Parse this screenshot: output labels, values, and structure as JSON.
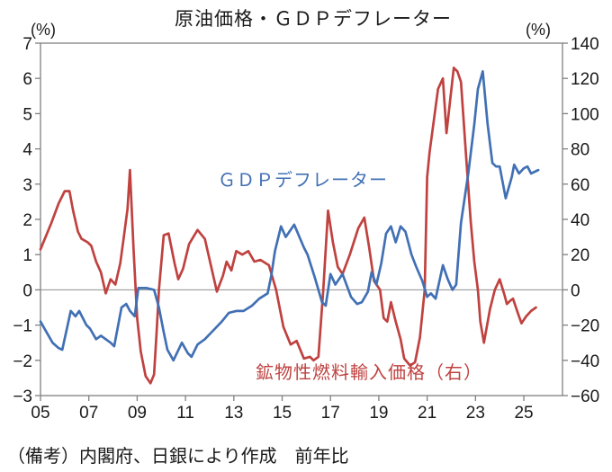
{
  "colors": {
    "axis": "#808080",
    "zero_line": "#8f8f8f",
    "text": "#1a1a1a"
  },
  "chart_data": {
    "type": "line",
    "title": "原油価格・ＧＤＰデフレーター",
    "note": "（備考）内閣府、日銀により作成　前年比",
    "grid": "zero-baseline-only",
    "legend": "inline-text-labels",
    "left_axis": {
      "unit": "(%)",
      "min": -3,
      "max": 7,
      "ticks": [
        7,
        6,
        5,
        4,
        3,
        2,
        1,
        0,
        -1,
        -2,
        -3
      ]
    },
    "right_axis": {
      "unit": "(%)",
      "min": -60,
      "max": 140,
      "ticks": [
        140,
        120,
        100,
        80,
        60,
        40,
        20,
        0,
        -20,
        -40,
        -60
      ]
    },
    "x_axis": {
      "min": 2005,
      "max": 2026.6,
      "tick_years": [
        2005,
        2007,
        2009,
        2011,
        2013,
        2015,
        2017,
        2019,
        2021,
        2023,
        2025
      ],
      "tick_labels": [
        "05",
        "07",
        "09",
        "11",
        "13",
        "15",
        "17",
        "19",
        "21",
        "23",
        "25"
      ]
    },
    "series": [
      {
        "name": "ＧＤＰデフレーター",
        "axis": "left",
        "color": "#4170b4",
        "points": [
          [
            2005.0,
            -0.9
          ],
          [
            2005.5,
            -1.5
          ],
          [
            2005.75,
            -1.65
          ],
          [
            2005.9,
            -1.7
          ],
          [
            2006.25,
            -0.6
          ],
          [
            2006.45,
            -0.75
          ],
          [
            2006.6,
            -0.6
          ],
          [
            2006.9,
            -1.0
          ],
          [
            2007.05,
            -1.1
          ],
          [
            2007.3,
            -1.4
          ],
          [
            2007.5,
            -1.3
          ],
          [
            2007.9,
            -1.5
          ],
          [
            2008.05,
            -1.6
          ],
          [
            2008.35,
            -0.5
          ],
          [
            2008.55,
            -0.4
          ],
          [
            2008.7,
            -0.6
          ],
          [
            2008.9,
            -0.75
          ],
          [
            2009.05,
            0.05
          ],
          [
            2009.4,
            0.05
          ],
          [
            2009.7,
            0.0
          ],
          [
            2009.9,
            -0.5
          ],
          [
            2010.1,
            -1.2
          ],
          [
            2010.25,
            -1.7
          ],
          [
            2010.5,
            -2.0
          ],
          [
            2010.85,
            -1.5
          ],
          [
            2011.1,
            -1.8
          ],
          [
            2011.25,
            -1.9
          ],
          [
            2011.5,
            -1.55
          ],
          [
            2011.8,
            -1.4
          ],
          [
            2012.15,
            -1.15
          ],
          [
            2012.5,
            -0.9
          ],
          [
            2012.8,
            -0.65
          ],
          [
            2013.1,
            -0.6
          ],
          [
            2013.4,
            -0.6
          ],
          [
            2013.75,
            -0.45
          ],
          [
            2014.05,
            -0.25
          ],
          [
            2014.4,
            -0.1
          ],
          [
            2014.55,
            0.4
          ],
          [
            2014.7,
            1.1
          ],
          [
            2014.95,
            1.8
          ],
          [
            2015.15,
            1.5
          ],
          [
            2015.5,
            1.85
          ],
          [
            2015.9,
            1.2
          ],
          [
            2016.05,
            1.0
          ],
          [
            2016.35,
            0.35
          ],
          [
            2016.65,
            -0.35
          ],
          [
            2016.8,
            -0.45
          ],
          [
            2017.0,
            0.45
          ],
          [
            2017.2,
            0.15
          ],
          [
            2017.5,
            0.45
          ],
          [
            2017.85,
            -0.2
          ],
          [
            2018.1,
            -0.4
          ],
          [
            2018.3,
            -0.35
          ],
          [
            2018.55,
            -0.05
          ],
          [
            2018.7,
            0.5
          ],
          [
            2018.9,
            0.15
          ],
          [
            2019.1,
            0.75
          ],
          [
            2019.3,
            1.6
          ],
          [
            2019.5,
            1.8
          ],
          [
            2019.7,
            1.35
          ],
          [
            2019.9,
            1.8
          ],
          [
            2020.1,
            1.65
          ],
          [
            2020.35,
            1.0
          ],
          [
            2020.55,
            0.65
          ],
          [
            2020.8,
            0.25
          ],
          [
            2021.0,
            -0.2
          ],
          [
            2021.15,
            -0.1
          ],
          [
            2021.35,
            -0.25
          ],
          [
            2021.65,
            0.7
          ],
          [
            2021.85,
            0.3
          ],
          [
            2022.05,
            0.0
          ],
          [
            2022.2,
            0.15
          ],
          [
            2022.4,
            1.9
          ],
          [
            2022.7,
            3.3
          ],
          [
            2022.95,
            4.7
          ],
          [
            2023.1,
            5.7
          ],
          [
            2023.3,
            6.2
          ],
          [
            2023.5,
            4.7
          ],
          [
            2023.7,
            3.6
          ],
          [
            2023.85,
            3.5
          ],
          [
            2024.0,
            3.5
          ],
          [
            2024.25,
            2.6
          ],
          [
            2024.5,
            3.2
          ],
          [
            2024.6,
            3.55
          ],
          [
            2024.8,
            3.3
          ],
          [
            2025.0,
            3.45
          ],
          [
            2025.15,
            3.5
          ],
          [
            2025.3,
            3.3
          ],
          [
            2025.6,
            3.4
          ]
        ]
      },
      {
        "name": "鉱物性燃料輸入価格（右）",
        "axis": "right",
        "color": "#bf4240",
        "points": [
          [
            2005.0,
            23
          ],
          [
            2005.45,
            38
          ],
          [
            2005.75,
            49
          ],
          [
            2006.0,
            56
          ],
          [
            2006.2,
            56
          ],
          [
            2006.35,
            45
          ],
          [
            2006.55,
            33
          ],
          [
            2006.7,
            29
          ],
          [
            2006.95,
            27
          ],
          [
            2007.1,
            25
          ],
          [
            2007.3,
            16
          ],
          [
            2007.5,
            10
          ],
          [
            2007.7,
            -2
          ],
          [
            2007.9,
            6
          ],
          [
            2008.1,
            3
          ],
          [
            2008.3,
            15
          ],
          [
            2008.45,
            30
          ],
          [
            2008.6,
            46
          ],
          [
            2008.7,
            68
          ],
          [
            2008.85,
            23
          ],
          [
            2009.0,
            -16
          ],
          [
            2009.15,
            -35
          ],
          [
            2009.35,
            -49
          ],
          [
            2009.55,
            -53
          ],
          [
            2009.7,
            -48
          ],
          [
            2009.8,
            -25
          ],
          [
            2009.9,
            0
          ],
          [
            2010.1,
            31
          ],
          [
            2010.3,
            32
          ],
          [
            2010.55,
            15
          ],
          [
            2010.7,
            6
          ],
          [
            2010.9,
            12
          ],
          [
            2011.15,
            26
          ],
          [
            2011.5,
            34
          ],
          [
            2011.8,
            29
          ],
          [
            2012.1,
            11
          ],
          [
            2012.3,
            -1
          ],
          [
            2012.55,
            8
          ],
          [
            2012.7,
            16
          ],
          [
            2012.9,
            11
          ],
          [
            2013.1,
            22
          ],
          [
            2013.35,
            20
          ],
          [
            2013.6,
            22
          ],
          [
            2013.85,
            16
          ],
          [
            2014.1,
            17
          ],
          [
            2014.45,
            14
          ],
          [
            2014.75,
            0
          ],
          [
            2015.05,
            -21
          ],
          [
            2015.35,
            -31
          ],
          [
            2015.6,
            -29
          ],
          [
            2015.9,
            -39
          ],
          [
            2016.15,
            -38
          ],
          [
            2016.3,
            -40
          ],
          [
            2016.5,
            -38
          ],
          [
            2016.7,
            0
          ],
          [
            2016.9,
            45
          ],
          [
            2017.1,
            27
          ],
          [
            2017.3,
            13
          ],
          [
            2017.5,
            9
          ],
          [
            2017.8,
            20
          ],
          [
            2018.15,
            35
          ],
          [
            2018.4,
            41
          ],
          [
            2018.6,
            24
          ],
          [
            2018.8,
            5
          ],
          [
            2019.05,
            0
          ],
          [
            2019.2,
            -16
          ],
          [
            2019.35,
            -18
          ],
          [
            2019.5,
            -7
          ],
          [
            2019.7,
            -18
          ],
          [
            2019.9,
            -28
          ],
          [
            2020.05,
            -39
          ],
          [
            2020.3,
            -43
          ],
          [
            2020.5,
            -41
          ],
          [
            2020.7,
            -27
          ],
          [
            2020.9,
            0
          ],
          [
            2020.95,
            33
          ],
          [
            2021.0,
            64
          ],
          [
            2021.1,
            78
          ],
          [
            2021.45,
            114
          ],
          [
            2021.65,
            120
          ],
          [
            2021.8,
            89
          ],
          [
            2022.1,
            126
          ],
          [
            2022.25,
            124
          ],
          [
            2022.4,
            118
          ],
          [
            2022.6,
            78
          ],
          [
            2022.8,
            39
          ],
          [
            2022.95,
            16
          ],
          [
            2023.1,
            0
          ],
          [
            2023.2,
            -18
          ],
          [
            2023.35,
            -30
          ],
          [
            2023.6,
            -11
          ],
          [
            2023.8,
            0
          ],
          [
            2024.0,
            6
          ],
          [
            2024.2,
            -3
          ],
          [
            2024.3,
            -8
          ],
          [
            2024.45,
            -6
          ],
          [
            2024.55,
            -5
          ],
          [
            2024.75,
            -13
          ],
          [
            2024.9,
            -19
          ],
          [
            2025.1,
            -15
          ],
          [
            2025.3,
            -12
          ],
          [
            2025.5,
            -10
          ]
        ]
      }
    ]
  }
}
